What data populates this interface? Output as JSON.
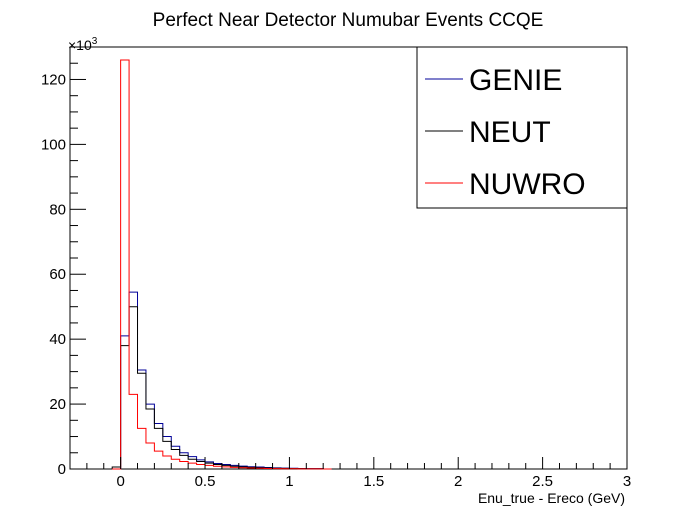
{
  "chart_data": {
    "type": "histogram",
    "title": "Perfect Near Detector Numubar Events CCQE",
    "xlabel": "Enu_true - Ereco (GeV)",
    "ylabel": "",
    "y_multiplier": "×10",
    "y_multiplier_exp": "3",
    "xlim": [
      -0.3,
      3.0
    ],
    "ylim": [
      0,
      130000
    ],
    "x_ticks": [
      0,
      0.5,
      1,
      1.5,
      2,
      2.5,
      3
    ],
    "x_tick_labels": [
      "0",
      "0.5",
      "1",
      "1.5",
      "2",
      "2.5",
      "3"
    ],
    "y_ticks": [
      0,
      20000,
      40000,
      60000,
      80000,
      100000,
      120000
    ],
    "y_tick_labels": [
      "0",
      "20",
      "40",
      "60",
      "80",
      "100",
      "120"
    ],
    "legend_position": "top-right",
    "bin_edges": [
      -0.05,
      0,
      0.05,
      0.1,
      0.15,
      0.2,
      0.25,
      0.3,
      0.35,
      0.4,
      0.45,
      0.5,
      0.55,
      0.6,
      0.65,
      0.7,
      0.75,
      0.8,
      0.85,
      0.9,
      0.95,
      1.0,
      1.05,
      1.1,
      1.15,
      1.2,
      1.25
    ],
    "series": [
      {
        "name": "GENIE",
        "color": "#000099",
        "values": [
          0,
          41000,
          54500,
          30500,
          20000,
          14000,
          10000,
          7000,
          5000,
          3800,
          2800,
          2200,
          1700,
          1400,
          1100,
          900,
          700,
          600,
          450,
          350,
          280,
          220,
          170,
          130,
          100,
          0
        ]
      },
      {
        "name": "NEUT",
        "color": "#000000",
        "values": [
          600,
          38000,
          50000,
          29500,
          18500,
          12500,
          8500,
          6000,
          4200,
          3000,
          2300,
          1800,
          1400,
          1100,
          850,
          650,
          500,
          400,
          300,
          250,
          200,
          150,
          120,
          90,
          70,
          0
        ]
      },
      {
        "name": "NUWRO",
        "color": "#ff0000",
        "values": [
          0,
          126000,
          23000,
          12500,
          8000,
          5500,
          4000,
          3000,
          2300,
          1800,
          1400,
          1100,
          850,
          650,
          500,
          380,
          290,
          220,
          160,
          120,
          90,
          70,
          50,
          40,
          30,
          0
        ]
      }
    ]
  }
}
